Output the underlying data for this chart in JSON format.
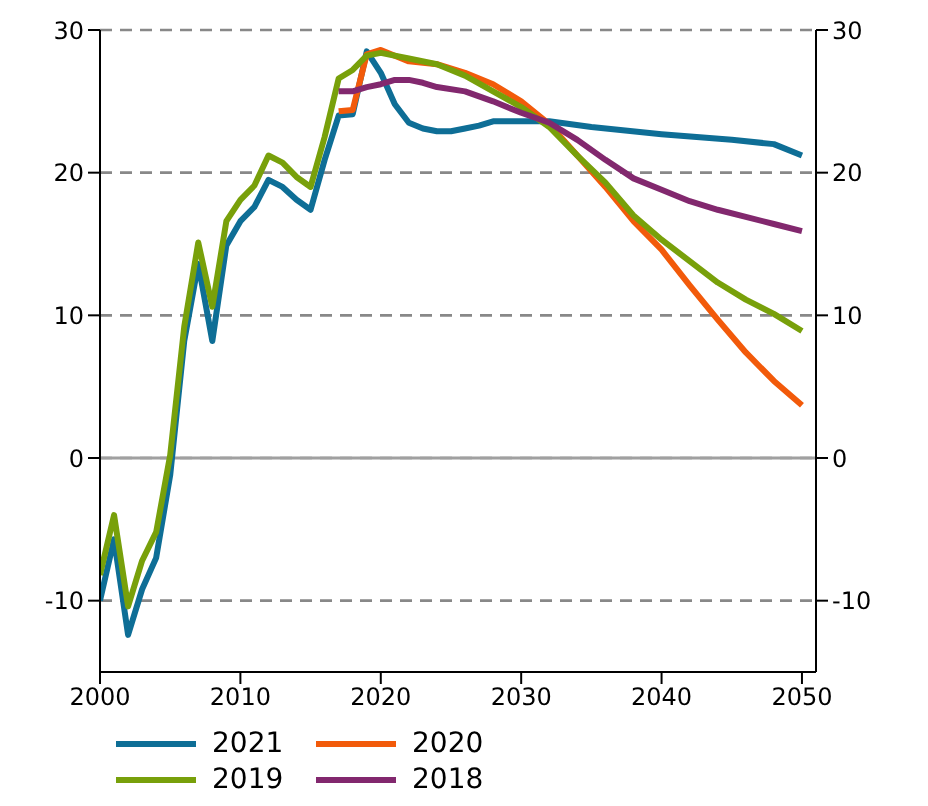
{
  "chart_data": {
    "type": "line",
    "xlim": [
      2000,
      2051
    ],
    "xticks": [
      2000,
      2010,
      2020,
      2030,
      2040,
      2050
    ],
    "ylim": [
      -15,
      30
    ],
    "yticks": [
      -10,
      0,
      10,
      20,
      30
    ],
    "y2lim": [
      -15,
      30
    ],
    "y2ticks": [
      -10,
      0,
      10,
      20,
      30
    ],
    "grid": "y",
    "legend": "bottom",
    "line_style": "solid",
    "marker": "none",
    "ref_lines": [
      {
        "axis": "y",
        "value": 0,
        "color": "#a0a0a0",
        "line_style": "solid"
      }
    ],
    "series": [
      {
        "name": "2021",
        "color": "#0e6e96",
        "x": [
          2000,
          2001,
          2002,
          2003,
          2004,
          2005,
          2006,
          2007,
          2008,
          2009,
          2010,
          2011,
          2012,
          2013,
          2014,
          2015,
          2016,
          2017,
          2018,
          2019,
          2020,
          2021,
          2022,
          2023,
          2024,
          2025,
          2026,
          2027,
          2028,
          2030,
          2032,
          2035,
          2040,
          2045,
          2048,
          2050
        ],
        "values": [
          -10,
          -5.7,
          -12.4,
          -9.2,
          -7,
          -1.2,
          8.2,
          13.6,
          8.2,
          14.9,
          16.6,
          17.6,
          19.5,
          19,
          18.1,
          17.4,
          20.9,
          24,
          24.1,
          28.5,
          27,
          24.8,
          23.5,
          23.1,
          22.9,
          22.9,
          23.1,
          23.3,
          23.6,
          23.6,
          23.6,
          23.2,
          22.7,
          22.3,
          22,
          21.2
        ]
      },
      {
        "name": "2020",
        "color": "#f25a0a",
        "x": [
          2017,
          2018,
          2019,
          2020,
          2021,
          2022,
          2024,
          2026,
          2028,
          2030,
          2032,
          2034,
          2036,
          2038,
          2040,
          2042,
          2044,
          2046,
          2048,
          2050
        ],
        "values": [
          24.3,
          24.4,
          28.3,
          28.6,
          28.2,
          27.8,
          27.6,
          27,
          26.2,
          25,
          23.4,
          21.2,
          19,
          16.6,
          14.6,
          12.1,
          9.7,
          7.4,
          5.4,
          3.7
        ]
      },
      {
        "name": "2019",
        "color": "#78a00a",
        "x": [
          2000,
          2001,
          2002,
          2003,
          2004,
          2005,
          2006,
          2007,
          2008,
          2009,
          2010,
          2011,
          2012,
          2013,
          2014,
          2015,
          2016,
          2017,
          2018,
          2019,
          2020,
          2022,
          2024,
          2026,
          2028,
          2030,
          2032,
          2034,
          2036,
          2038,
          2040,
          2042,
          2044,
          2046,
          2048,
          2050
        ],
        "values": [
          -8.2,
          -4,
          -10.4,
          -7.2,
          -5.2,
          0.2,
          9.2,
          15.1,
          10.6,
          16.6,
          18.1,
          19.1,
          21.2,
          20.7,
          19.7,
          19,
          22.5,
          26.6,
          27.2,
          28.2,
          28.4,
          28,
          27.6,
          26.8,
          25.7,
          24.6,
          23.2,
          21.2,
          19.3,
          17,
          15.3,
          13.8,
          12.3,
          11.1,
          10.1,
          8.9
        ]
      },
      {
        "name": "2018",
        "color": "#82286e",
        "x": [
          2017,
          2018,
          2019,
          2020,
          2021,
          2022,
          2023,
          2024,
          2026,
          2028,
          2030,
          2032,
          2034,
          2036,
          2038,
          2040,
          2042,
          2044,
          2046,
          2048,
          2050
        ],
        "values": [
          25.7,
          25.7,
          26,
          26.2,
          26.5,
          26.5,
          26.3,
          26,
          25.7,
          25,
          24.2,
          23.5,
          22.3,
          20.9,
          19.6,
          18.8,
          18,
          17.4,
          16.9,
          16.4,
          15.9
        ]
      }
    ]
  }
}
